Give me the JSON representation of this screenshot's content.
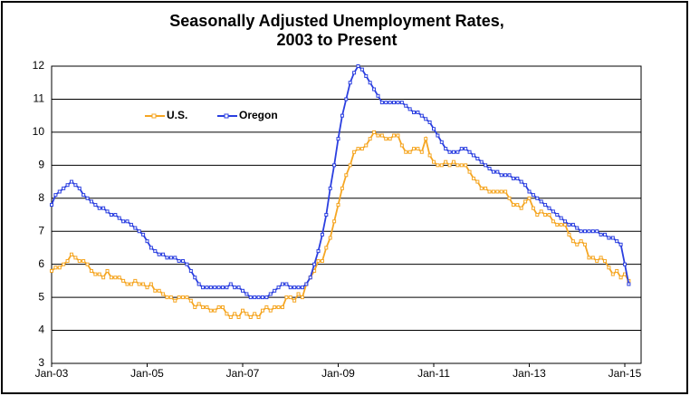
{
  "chart_data": {
    "type": "line",
    "title": "Seasonally Adjusted Unemployment Rates,",
    "subtitle": "2003 to Present",
    "categories": [
      "Jan-03",
      null,
      null,
      null,
      null,
      null,
      null,
      null,
      null,
      null,
      null,
      null,
      null,
      null,
      null,
      null,
      null,
      null,
      null,
      null,
      null,
      null,
      null,
      null,
      "Jan-05",
      null,
      null,
      null,
      null,
      null,
      null,
      null,
      null,
      null,
      null,
      null,
      null,
      null,
      null,
      null,
      null,
      null,
      null,
      null,
      null,
      null,
      null,
      null,
      "Jan-07",
      null,
      null,
      null,
      null,
      null,
      null,
      null,
      null,
      null,
      null,
      null,
      null,
      null,
      null,
      null,
      null,
      null,
      null,
      null,
      null,
      null,
      null,
      null,
      "Jan-09",
      null,
      null,
      null,
      null,
      null,
      null,
      null,
      null,
      null,
      null,
      null,
      null,
      null,
      null,
      null,
      null,
      null,
      null,
      null,
      null,
      null,
      null,
      null,
      "Jan-11",
      null,
      null,
      null,
      null,
      null,
      null,
      null,
      null,
      null,
      null,
      null,
      null,
      null,
      null,
      null,
      null,
      null,
      null,
      null,
      null,
      null,
      null,
      null,
      "Jan-13",
      null,
      null,
      null,
      null,
      null,
      null,
      null,
      null,
      null,
      null,
      null,
      null,
      null,
      null,
      null,
      null,
      null,
      null,
      null,
      null,
      null,
      null,
      null,
      "Jan-15",
      null
    ],
    "series": [
      {
        "name": "U.S.",
        "color": "#f5a623",
        "values": [
          5.8,
          5.9,
          5.9,
          6.0,
          6.1,
          6.3,
          6.2,
          6.1,
          6.1,
          6.0,
          5.8,
          5.7,
          5.7,
          5.6,
          5.8,
          5.6,
          5.6,
          5.6,
          5.5,
          5.4,
          5.4,
          5.5,
          5.4,
          5.4,
          5.3,
          5.4,
          5.2,
          5.2,
          5.1,
          5.0,
          5.0,
          4.9,
          5.0,
          5.0,
          5.0,
          4.9,
          4.7,
          4.8,
          4.7,
          4.7,
          4.6,
          4.6,
          4.7,
          4.7,
          4.5,
          4.4,
          4.5,
          4.4,
          4.6,
          4.5,
          4.4,
          4.5,
          4.4,
          4.6,
          4.7,
          4.6,
          4.7,
          4.7,
          4.7,
          5.0,
          5.0,
          4.9,
          5.1,
          5.0,
          5.4,
          5.6,
          5.8,
          6.1,
          6.1,
          6.5,
          6.8,
          7.3,
          7.8,
          8.3,
          8.7,
          9.0,
          9.4,
          9.5,
          9.5,
          9.6,
          9.8,
          10.0,
          9.9,
          9.9,
          9.8,
          9.8,
          9.9,
          9.9,
          9.6,
          9.4,
          9.4,
          9.5,
          9.5,
          9.4,
          9.8,
          9.3,
          9.1,
          9.0,
          9.0,
          9.1,
          9.0,
          9.1,
          9.0,
          9.0,
          9.0,
          8.8,
          8.6,
          8.5,
          8.3,
          8.3,
          8.2,
          8.2,
          8.2,
          8.2,
          8.2,
          8.0,
          7.8,
          7.8,
          7.7,
          7.9,
          8.0,
          7.7,
          7.5,
          7.6,
          7.5,
          7.5,
          7.3,
          7.2,
          7.2,
          7.2,
          6.9,
          6.7,
          6.6,
          6.7,
          6.6,
          6.2,
          6.2,
          6.1,
          6.2,
          6.1,
          5.9,
          5.7,
          5.8,
          5.6,
          5.7,
          5.5
        ]
      },
      {
        "name": "Oregon",
        "color": "#2b3fe0",
        "values": [
          7.8,
          8.1,
          8.2,
          8.3,
          8.4,
          8.5,
          8.4,
          8.3,
          8.1,
          8.0,
          7.9,
          7.8,
          7.7,
          7.7,
          7.6,
          7.5,
          7.5,
          7.4,
          7.3,
          7.3,
          7.2,
          7.1,
          7.0,
          6.9,
          6.7,
          6.5,
          6.4,
          6.3,
          6.3,
          6.2,
          6.2,
          6.2,
          6.1,
          6.1,
          6.0,
          5.8,
          5.6,
          5.4,
          5.3,
          5.3,
          5.3,
          5.3,
          5.3,
          5.3,
          5.3,
          5.4,
          5.3,
          5.3,
          5.2,
          5.1,
          5.0,
          5.0,
          5.0,
          5.0,
          5.0,
          5.1,
          5.2,
          5.3,
          5.4,
          5.4,
          5.3,
          5.3,
          5.3,
          5.3,
          5.4,
          5.6,
          6.0,
          6.4,
          6.9,
          7.5,
          8.3,
          9.0,
          9.8,
          10.5,
          11.0,
          11.5,
          11.8,
          12.0,
          11.9,
          11.7,
          11.5,
          11.3,
          11.1,
          10.9,
          10.9,
          10.9,
          10.9,
          10.9,
          10.9,
          10.8,
          10.7,
          10.6,
          10.6,
          10.5,
          10.4,
          10.3,
          10.1,
          9.9,
          9.7,
          9.5,
          9.4,
          9.4,
          9.4,
          9.5,
          9.5,
          9.4,
          9.3,
          9.2,
          9.1,
          9.0,
          8.9,
          8.8,
          8.8,
          8.7,
          8.7,
          8.7,
          8.6,
          8.6,
          8.5,
          8.4,
          8.2,
          8.1,
          8.0,
          7.9,
          7.8,
          7.7,
          7.6,
          7.5,
          7.4,
          7.3,
          7.2,
          7.2,
          7.1,
          7.0,
          7.0,
          7.0,
          7.0,
          7.0,
          6.9,
          6.9,
          6.8,
          6.8,
          6.7,
          6.6,
          6.0,
          5.4
        ]
      }
    ],
    "ylim": [
      3,
      12
    ],
    "yticks": [
      3,
      4,
      5,
      6,
      7,
      8,
      9,
      10,
      11,
      12
    ],
    "grid": true,
    "legend": "upper left"
  }
}
